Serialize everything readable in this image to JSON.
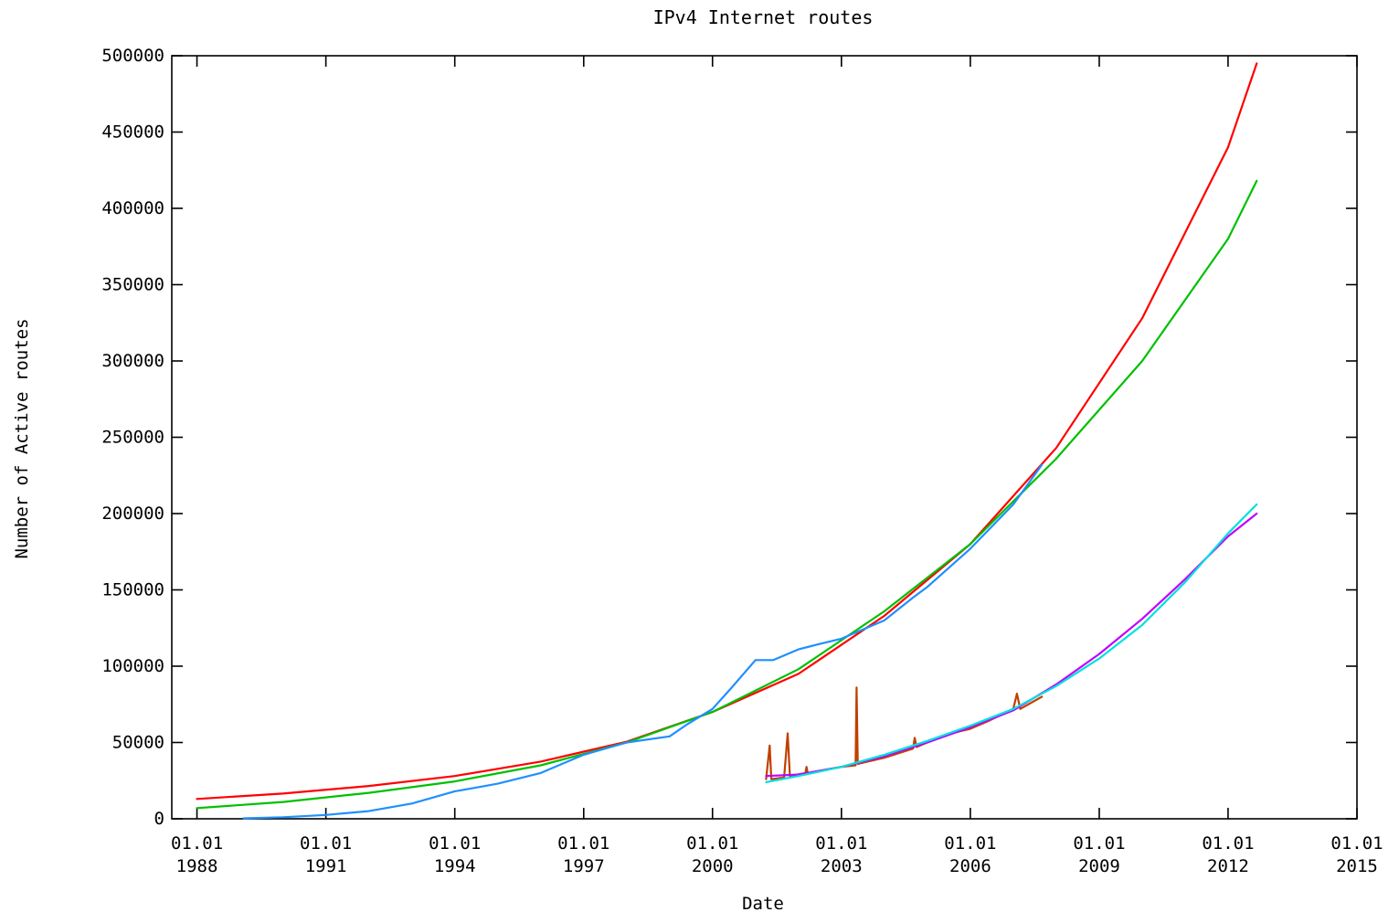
{
  "chart_data": {
    "type": "line",
    "title": "IPv4 Internet routes",
    "xlabel": "Date",
    "ylabel": "Number of Active routes",
    "xlim": [
      "1987-06-01",
      "2015-01-01"
    ],
    "ylim": [
      0,
      500000
    ],
    "grid": false,
    "legend": "none",
    "x_ticks": [
      {
        "date": "1988-01-01",
        "label": [
          "01.01",
          "1988"
        ]
      },
      {
        "date": "1991-01-01",
        "label": [
          "01.01",
          "1991"
        ]
      },
      {
        "date": "1994-01-01",
        "label": [
          "01.01",
          "1994"
        ]
      },
      {
        "date": "1997-01-01",
        "label": [
          "01.01",
          "1997"
        ]
      },
      {
        "date": "2000-01-01",
        "label": [
          "01.01",
          "2000"
        ]
      },
      {
        "date": "2003-01-01",
        "label": [
          "01.01",
          "2003"
        ]
      },
      {
        "date": "2006-01-01",
        "label": [
          "01.01",
          "2006"
        ]
      },
      {
        "date": "2009-01-01",
        "label": [
          "01.01",
          "2009"
        ]
      },
      {
        "date": "2012-01-01",
        "label": [
          "01.01",
          "2012"
        ]
      },
      {
        "date": "2015-01-01",
        "label": [
          "01.01",
          "2015"
        ]
      }
    ],
    "y_ticks": [
      0,
      50000,
      100000,
      150000,
      200000,
      250000,
      300000,
      350000,
      400000,
      450000,
      500000
    ],
    "y_tick_labels": [
      "0",
      "50000",
      "100000",
      "150000",
      "200000",
      "250000",
      "300000",
      "350000",
      "400000",
      "450000",
      "500000"
    ],
    "series": [
      {
        "color": "#ff0000",
        "points": [
          [
            "1988-01-01",
            13000
          ],
          [
            "1990-01-01",
            16500
          ],
          [
            "1992-01-01",
            21500
          ],
          [
            "1994-01-01",
            28000
          ],
          [
            "1996-01-01",
            37500
          ],
          [
            "1998-01-01",
            50500
          ],
          [
            "2000-01-01",
            70000
          ],
          [
            "2002-01-01",
            95000
          ],
          [
            "2004-01-01",
            133000
          ],
          [
            "2006-01-01",
            180000
          ],
          [
            "2008-01-01",
            243000
          ],
          [
            "2010-01-01",
            328000
          ],
          [
            "2012-01-01",
            440000
          ],
          [
            "2012-09-01",
            495000
          ]
        ]
      },
      {
        "color": "#00c000",
        "points": [
          [
            "1988-01-01",
            7000
          ],
          [
            "1990-01-01",
            11000
          ],
          [
            "1992-01-01",
            17000
          ],
          [
            "1994-01-01",
            24500
          ],
          [
            "1996-01-01",
            35000
          ],
          [
            "1998-01-01",
            50000
          ],
          [
            "2000-01-01",
            70000
          ],
          [
            "2002-01-01",
            98000
          ],
          [
            "2004-01-01",
            136000
          ],
          [
            "2006-01-01",
            180000
          ],
          [
            "2008-01-01",
            236000
          ],
          [
            "2010-01-01",
            300000
          ],
          [
            "2012-01-01",
            380000
          ],
          [
            "2012-09-01",
            418000
          ]
        ]
      },
      {
        "color": "#1f8fff",
        "points": [
          [
            "1989-02-01",
            300
          ],
          [
            "1990-01-01",
            1000
          ],
          [
            "1991-01-01",
            2500
          ],
          [
            "1992-01-01",
            5000
          ],
          [
            "1993-01-01",
            10000
          ],
          [
            "1994-01-01",
            18000
          ],
          [
            "1994-06-01",
            20000
          ],
          [
            "1995-01-01",
            23000
          ],
          [
            "1996-01-01",
            30000
          ],
          [
            "1997-01-01",
            42000
          ],
          [
            "1998-01-01",
            50000
          ],
          [
            "1999-01-01",
            54000
          ],
          [
            "1999-06-01",
            62000
          ],
          [
            "2000-01-01",
            72000
          ],
          [
            "2000-06-01",
            85000
          ],
          [
            "2001-01-01",
            104000
          ],
          [
            "2001-06-01",
            104000
          ],
          [
            "2002-01-01",
            111000
          ],
          [
            "2002-06-01",
            114000
          ],
          [
            "2003-01-01",
            118000
          ],
          [
            "2004-01-01",
            130000
          ],
          [
            "2004-09-01",
            145000
          ],
          [
            "2005-01-01",
            152000
          ],
          [
            "2006-01-01",
            177000
          ],
          [
            "2007-01-01",
            206000
          ],
          [
            "2007-09-01",
            232000
          ]
        ]
      },
      {
        "color": "#c04000",
        "points": [
          [
            "2001-04-01",
            26000
          ],
          [
            "2001-05-01",
            48000
          ],
          [
            "2001-05-15",
            26000
          ],
          [
            "2001-09-01",
            27000
          ],
          [
            "2001-10-01",
            56000
          ],
          [
            "2001-10-20",
            28000
          ],
          [
            "2002-03-01",
            30000
          ],
          [
            "2002-03-10",
            34000
          ],
          [
            "2002-03-20",
            30000
          ],
          [
            "2003-01-01",
            34000
          ],
          [
            "2003-05-01",
            35000
          ],
          [
            "2003-05-10",
            86000
          ],
          [
            "2003-05-20",
            36000
          ],
          [
            "2004-01-01",
            40000
          ],
          [
            "2004-09-01",
            46000
          ],
          [
            "2004-09-15",
            53000
          ],
          [
            "2004-10-01",
            47000
          ],
          [
            "2005-06-01",
            55000
          ],
          [
            "2006-01-01",
            59000
          ],
          [
            "2006-06-01",
            64000
          ],
          [
            "2007-01-01",
            72000
          ],
          [
            "2007-02-01",
            82000
          ],
          [
            "2007-03-01",
            72000
          ],
          [
            "2007-09-01",
            80000
          ]
        ]
      },
      {
        "color": "#c000ff",
        "points": [
          [
            "2001-04-01",
            28000
          ],
          [
            "2002-01-01",
            29000
          ],
          [
            "2003-01-01",
            34000
          ],
          [
            "2004-01-01",
            41000
          ],
          [
            "2005-01-01",
            50000
          ],
          [
            "2006-01-01",
            60000
          ],
          [
            "2007-01-01",
            71000
          ],
          [
            "2008-01-01",
            88000
          ],
          [
            "2009-01-01",
            108000
          ],
          [
            "2010-01-01",
            131000
          ],
          [
            "2011-01-01",
            157000
          ],
          [
            "2012-01-01",
            185000
          ],
          [
            "2012-09-01",
            200000
          ]
        ]
      },
      {
        "color": "#00e0e0",
        "points": [
          [
            "2001-04-01",
            24000
          ],
          [
            "2002-01-01",
            28000
          ],
          [
            "2003-01-01",
            34000
          ],
          [
            "2004-01-01",
            42000
          ],
          [
            "2005-01-01",
            51000
          ],
          [
            "2006-01-01",
            61000
          ],
          [
            "2007-01-01",
            72000
          ],
          [
            "2008-01-01",
            87000
          ],
          [
            "2009-01-01",
            105000
          ],
          [
            "2010-01-01",
            127000
          ],
          [
            "2011-01-01",
            155000
          ],
          [
            "2012-01-01",
            187000
          ],
          [
            "2012-09-01",
            206000
          ]
        ]
      }
    ]
  }
}
